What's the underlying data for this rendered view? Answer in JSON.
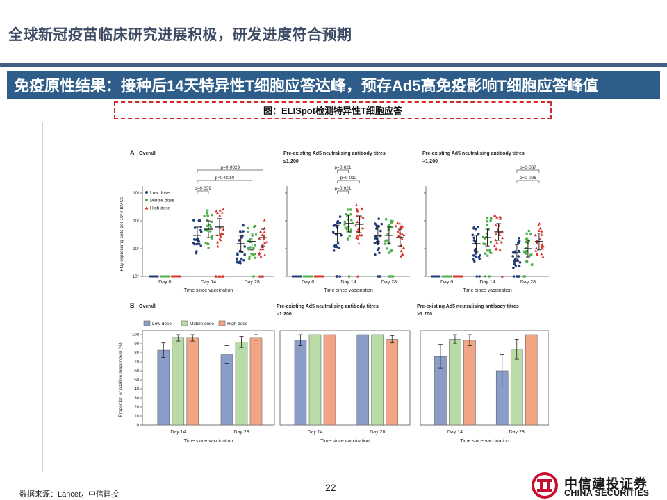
{
  "header": {
    "title": "全球新冠疫苗临床研究进展积极，研发进度符合预期",
    "banner": "免疫原性结果：接种后14天特异性T细胞应答达峰，预存Ad5高免疫影响T细胞应答峰值",
    "caption": "图：ELISpot检测特异性T细胞应答"
  },
  "footer": {
    "source": "数据来源：Lancet，中信建投",
    "page_number": "22",
    "logo_cn": "中信建投证券",
    "logo_en": "CHINA SECURITIES"
  },
  "colors": {
    "banner": "#2f5d8a",
    "low": "#1f3d7a",
    "middle": "#4db04a",
    "high": "#d9342b",
    "bar_low": "#8a9cc8",
    "bar_middle": "#b9dca6",
    "bar_high": "#f2a584",
    "logo_red": "#c8102e"
  },
  "chart_data": [
    {
      "type": "scatter",
      "panel_letter": "A",
      "title": "Overall",
      "xlabel": "Time since vaccination",
      "ylabel": "IFNγ expressing cells per 10⁵ PBMCs",
      "y_scale": "log",
      "y_ticks": [
        "10⁰",
        "10¹",
        "10²",
        "10³"
      ],
      "categories": [
        "Day 0",
        "Day 14",
        "Day 28"
      ],
      "legend": [
        "Low dose",
        "Middle dose",
        "High dose"
      ],
      "legend_position": "top-left",
      "medians": {
        "Low dose": [
          1,
          30,
          15
        ],
        "Middle dose": [
          1,
          50,
          18
        ],
        "High dose": [
          1,
          60,
          25
        ]
      },
      "annotations": [
        "p=0·0029",
        "p<0·0010",
        "p=0·039"
      ]
    },
    {
      "type": "scatter",
      "title_lines": [
        "Pre-existing Ad5 neutralising antibody titres",
        "≤1:200"
      ],
      "xlabel": "Time since vaccination",
      "y_scale": "log",
      "categories": [
        "Day 0",
        "Day 14",
        "Day 28"
      ],
      "medians": {
        "Low dose": [
          1,
          35,
          30
        ],
        "Middle dose": [
          1,
          80,
          30
        ],
        "High dose": [
          1,
          75,
          25
        ]
      },
      "annotations": [
        "p=0·021",
        "p=0·012",
        "p=0·021"
      ]
    },
    {
      "type": "scatter",
      "title_lines": [
        "Pre-existing Ad5 neutralising antibody titres",
        ">1:200"
      ],
      "xlabel": "Time since vaccination",
      "y_scale": "log",
      "categories": [
        "Day 0",
        "Day 14",
        "Day 28"
      ],
      "medians": {
        "Low dose": [
          1,
          15,
          7
        ],
        "Middle dose": [
          1,
          25,
          10
        ],
        "High dose": [
          1,
          40,
          18
        ]
      },
      "annotations": [
        "p=0·037",
        "p=0·026"
      ]
    },
    {
      "type": "bar",
      "panel_letter": "B",
      "title": "Overall",
      "xlabel": "Time since vaccination",
      "ylabel": "Proportion of positive responders (%)",
      "ylim": [
        0,
        100
      ],
      "y_ticks": [
        0,
        10,
        20,
        30,
        40,
        50,
        60,
        70,
        80,
        90,
        100
      ],
      "categories": [
        "Day 14",
        "Day 28"
      ],
      "legend": [
        "Low dose",
        "Middle dose",
        "High dose"
      ],
      "legend_position": "top",
      "series": [
        {
          "name": "Low dose",
          "values": [
            83,
            78
          ],
          "err": [
            8,
            10
          ]
        },
        {
          "name": "Middle dose",
          "values": [
            97,
            92
          ],
          "err": [
            4,
            6
          ]
        },
        {
          "name": "High dose",
          "values": [
            97,
            97
          ],
          "err": [
            4,
            3
          ]
        }
      ]
    },
    {
      "type": "bar",
      "title_lines": [
        "Pre-existing Ad5 neutralising antibody titres",
        "≤1:200"
      ],
      "xlabel": "Time since vaccination",
      "ylim": [
        0,
        100
      ],
      "categories": [
        "Day 14",
        "Day 28"
      ],
      "series": [
        {
          "name": "Low dose",
          "values": [
            94,
            100
          ],
          "err": [
            6,
            0
          ]
        },
        {
          "name": "Middle dose",
          "values": [
            100,
            100
          ],
          "err": [
            0,
            0
          ]
        },
        {
          "name": "High dose",
          "values": [
            100,
            95
          ],
          "err": [
            0,
            4
          ]
        }
      ]
    },
    {
      "type": "bar",
      "title_lines": [
        "Pre-existing Ad5 neutralising antibody titres",
        ">1:200"
      ],
      "xlabel": "Time since vaccination",
      "ylim": [
        0,
        100
      ],
      "categories": [
        "Day 14",
        "Day 28"
      ],
      "series": [
        {
          "name": "Low dose",
          "values": [
            76,
            60
          ],
          "err": [
            13,
            18
          ]
        },
        {
          "name": "Middle dose",
          "values": [
            95,
            84
          ],
          "err": [
            5,
            11
          ]
        },
        {
          "name": "High dose",
          "values": [
            94,
            100
          ],
          "err": [
            6,
            0
          ]
        }
      ]
    }
  ]
}
